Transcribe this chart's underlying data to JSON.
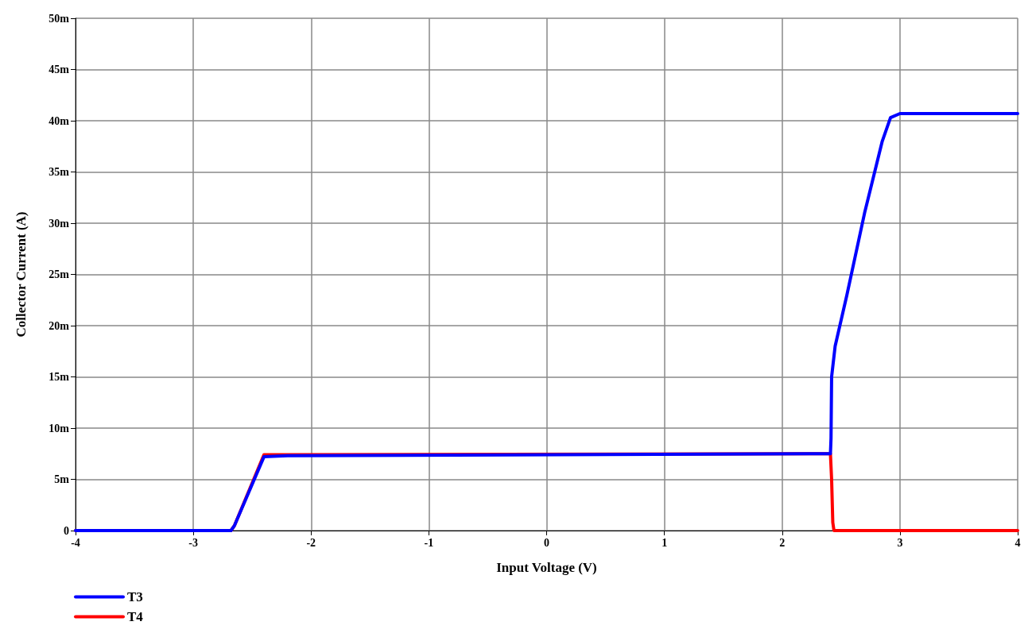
{
  "chart_data": {
    "type": "line",
    "xlabel": "Input Voltage (V)",
    "ylabel": "Collector Current (A)",
    "xlim": [
      -4,
      4
    ],
    "xticks": [
      -4,
      -3,
      -2,
      -1,
      0,
      1,
      2,
      3,
      4
    ],
    "ylim": [
      0,
      50
    ],
    "yticks": [
      0,
      {
        "value": 5,
        "label": "5m"
      },
      {
        "value": 10,
        "label": "10m"
      },
      {
        "value": 15,
        "label": "15m"
      },
      {
        "value": 20,
        "label": "20m"
      },
      {
        "value": 25,
        "label": "25m"
      },
      {
        "value": 30,
        "label": "30m"
      },
      {
        "value": 35,
        "label": "35m"
      },
      {
        "value": 40,
        "label": "40m"
      },
      {
        "value": 45,
        "label": "45m"
      },
      {
        "value": 50,
        "label": "50m"
      }
    ],
    "grid": true,
    "legend": "bottom left",
    "marker": "none",
    "line_style": "solid",
    "series": [
      {
        "name": "T4",
        "color": "#ff0000",
        "x": [
          -4,
          -2.68,
          -2.65,
          -2.4,
          -2.2,
          2.41,
          2.42,
          2.43,
          2.44,
          4
        ],
        "values": [
          0,
          0,
          0.5,
          7.4,
          7.4,
          7.5,
          5,
          0.8,
          0,
          0
        ]
      },
      {
        "name": "T3",
        "color": "#0000ff",
        "x": [
          -4,
          -2.68,
          -2.65,
          -2.4,
          -2.2,
          2.41,
          2.415,
          2.42,
          2.45,
          2.55,
          2.7,
          2.85,
          2.92,
          3.0,
          4
        ],
        "values": [
          0,
          0,
          0.5,
          7.2,
          7.3,
          7.5,
          9,
          15,
          18,
          23,
          31,
          38,
          40.3,
          40.7,
          40.7
        ]
      }
    ]
  }
}
